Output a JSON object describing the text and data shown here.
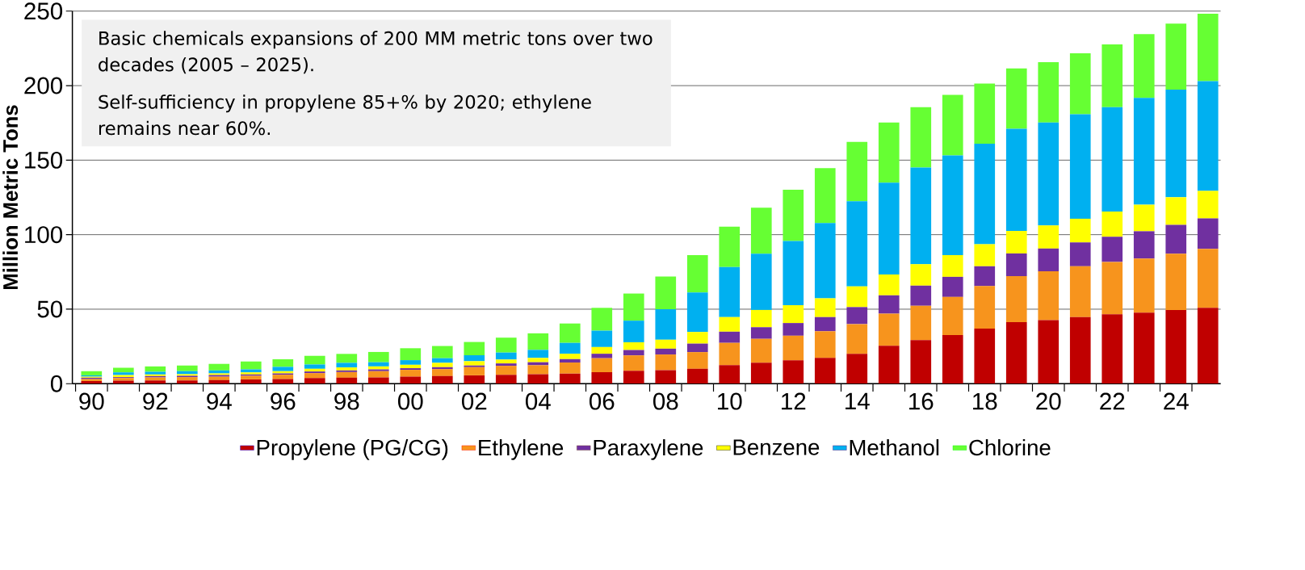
{
  "chart_data": {
    "type": "bar",
    "stacked": true,
    "ylabel": "Million Metric Tons",
    "categories": [
      "90",
      null,
      "92",
      null,
      "94",
      null,
      "96",
      null,
      "98",
      null,
      "00",
      null,
      "02",
      null,
      "04",
      null,
      "06",
      null,
      "08",
      null,
      "10",
      null,
      "12",
      null,
      "14",
      null,
      "16",
      null,
      "18",
      null,
      "20",
      null,
      "22",
      null,
      "24",
      null
    ],
    "series": [
      {
        "name": "Propylene (PG/CG)",
        "color": "#c00000",
        "values": [
          1.8,
          2.0,
          2.2,
          2.2,
          2.4,
          2.9,
          3.1,
          3.8,
          4.0,
          4.2,
          4.7,
          5.1,
          5.6,
          6.0,
          6.4,
          6.8,
          7.7,
          8.7,
          9.1,
          10.0,
          12.5,
          14.1,
          15.7,
          17.3,
          20.1,
          25.4,
          29.2,
          32.7,
          37.0,
          41.3,
          42.7,
          44.7,
          46.6,
          47.7,
          49.5,
          50.9
        ]
      },
      {
        "name": "Ethylene",
        "color": "#f7941d",
        "values": [
          1.3,
          1.8,
          2.0,
          2.2,
          2.3,
          2.4,
          2.9,
          3.3,
          3.8,
          4.2,
          4.6,
          4.7,
          5.5,
          6.0,
          6.0,
          7.4,
          9.4,
          10.3,
          10.5,
          11.2,
          14.9,
          16.0,
          16.5,
          17.9,
          19.9,
          21.6,
          23.1,
          25.5,
          28.5,
          30.9,
          32.7,
          34.1,
          35.1,
          36.3,
          37.7,
          39.5
        ]
      },
      {
        "name": "Paraxylene",
        "color": "#7030a0",
        "values": [
          0.9,
          0.6,
          0.9,
          0.9,
          1.1,
          0.9,
          0.9,
          1.1,
          1.1,
          1.2,
          1.1,
          1.3,
          1.1,
          1.6,
          2.0,
          2.3,
          3.0,
          3.6,
          3.9,
          5.7,
          7.5,
          7.8,
          8.5,
          9.5,
          11.4,
          12.3,
          13.5,
          13.5,
          13.3,
          15.2,
          15.3,
          16.0,
          16.9,
          18.3,
          19.4,
          20.5
        ]
      },
      {
        "name": "Benzene",
        "color": "#ffff00",
        "values": [
          0.7,
          1.4,
          1.1,
          1.1,
          1.1,
          1.4,
          1.5,
          1.8,
          2.0,
          2.0,
          2.3,
          2.9,
          2.9,
          2.6,
          2.9,
          3.6,
          4.5,
          5.2,
          6.0,
          7.8,
          9.8,
          11.6,
          12.0,
          12.6,
          13.9,
          14.0,
          14.4,
          14.6,
          14.8,
          15.1,
          15.5,
          15.9,
          16.9,
          17.8,
          18.5,
          18.5
        ]
      },
      {
        "name": "Methanol",
        "color": "#00b0f0",
        "values": [
          0.9,
          1.8,
          1.8,
          2.0,
          2.0,
          2.0,
          2.9,
          2.9,
          3.1,
          2.8,
          3.1,
          3.1,
          4.0,
          4.7,
          5.4,
          7.3,
          11.0,
          14.5,
          20.5,
          26.5,
          33.6,
          37.7,
          43.0,
          50.5,
          57.1,
          61.6,
          64.8,
          66.9,
          67.4,
          68.5,
          69.1,
          70.1,
          70.1,
          71.7,
          72.2,
          73.6
        ]
      },
      {
        "name": "Chlorine",
        "color": "#66ff33",
        "values": [
          2.8,
          3.1,
          3.6,
          3.8,
          4.4,
          5.3,
          5.1,
          5.8,
          6.0,
          6.9,
          8.0,
          8.2,
          8.9,
          10.0,
          11.1,
          13.0,
          15.3,
          18.2,
          21.9,
          25.1,
          27.0,
          30.9,
          34.5,
          36.9,
          39.9,
          40.4,
          40.6,
          40.6,
          40.4,
          40.6,
          40.5,
          40.9,
          42.0,
          42.7,
          44.3,
          45.2
        ]
      }
    ],
    "ylim": [
      0,
      250
    ],
    "yticks": [
      0,
      50,
      100,
      150,
      200,
      250
    ],
    "grid": "y",
    "legend": "bottom",
    "annotations": [
      "Basic chemicals expansions of 200 MM metric tons over two decades (2005 – 2025).",
      "Self-sufficiency in propylene 85+% by 2020; ethylene remains near 60%."
    ]
  }
}
